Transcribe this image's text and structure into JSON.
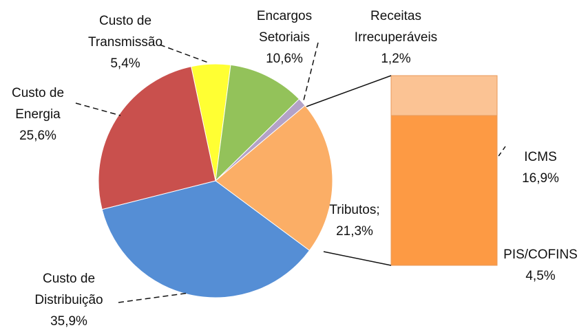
{
  "chart_data": {
    "type": "pie",
    "categories": [
      "Custo de Transmissão",
      "Encargos Setoriais",
      "Receitas Irrecuperáveis",
      "Tributos;",
      "Custo de Distribuição",
      "Custo de Energia"
    ],
    "values": [
      5.4,
      10.6,
      1.2,
      21.3,
      35.9,
      25.6
    ],
    "value_labels": [
      "5,4%",
      "10,6%",
      "1,2%",
      "21,3%",
      "35,9%",
      "25,6%"
    ],
    "colors": [
      "#ffff33",
      "#93c25a",
      "#b3a2c7",
      "#fbae66",
      "#558ed5",
      "#c9504d"
    ],
    "bar": {
      "categories": [
        "ICMS",
        "PIS/COFINS"
      ],
      "values": [
        16.9,
        4.5
      ],
      "value_labels": [
        "16,9%",
        "4,5%"
      ],
      "colors": [
        "#fbc394",
        "#fd9a44"
      ]
    }
  }
}
